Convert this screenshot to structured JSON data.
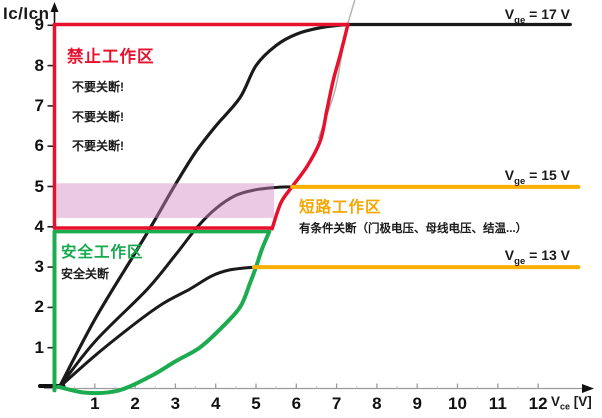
{
  "axis": {
    "y_title": "Ic/Icn",
    "x_title": {
      "v": "V",
      "sub": "ce",
      "rest": " [V]"
    }
  },
  "curve_labels": [
    {
      "v": "V",
      "sub": "ge",
      "rest": " = 17 V"
    },
    {
      "v": "V",
      "sub": "ge",
      "rest": " = 15 V"
    },
    {
      "v": "V",
      "sub": "ge",
      "rest": " = 13 V"
    }
  ],
  "regions": {
    "forbidden": {
      "title": "禁止工作区",
      "notes": [
        "不要关断!",
        "不要关断!",
        "不要关断!"
      ],
      "color": "#e8112d"
    },
    "safe": {
      "title": "安全工作区",
      "note": "安全关断",
      "color": "#15a94e"
    },
    "short_circuit": {
      "title": "短路工作区",
      "note": "有条件关断（门极电压、母线电压、结温...）",
      "color": "#f5a600"
    }
  },
  "chart_data": {
    "type": "line",
    "title": "",
    "xlabel": "Vce [V]",
    "ylabel": "Ic/Icn",
    "xlim": [
      0,
      13.2
    ],
    "ylim": [
      0,
      9.6
    ],
    "x_ticks": [
      1,
      2,
      3,
      4,
      5,
      6,
      7,
      8,
      9,
      10,
      11,
      12
    ],
    "y_ticks": [
      1,
      2,
      3,
      4,
      5,
      6,
      7,
      8,
      9
    ],
    "grid": false,
    "colors": {
      "curve_black": "#1a1a1a",
      "forbidden_red": "#e8112d",
      "safe_green": "#1cac4f",
      "short_orange": "#fbaf00",
      "axis_gray": "#9b9b9b",
      "hint_gray": "#b3b3b3"
    },
    "highlight_band": {
      "x": [
        0.05,
        5.45
      ],
      "y": [
        4.22,
        5.08
      ],
      "color": "rgba(211,136,195,0.45)"
    },
    "series": [
      {
        "name": "origin-mark",
        "color": "#111111",
        "width": 4,
        "layer": "under",
        "points": [
          [
            -0.36,
            0.05
          ],
          [
            0.22,
            0.05
          ]
        ]
      },
      {
        "name": "vge17-rise",
        "color": "#1a1a1a",
        "width": 3.2,
        "layer": "under",
        "points": [
          [
            0.12,
            0.02
          ],
          [
            1.0,
            1.7
          ],
          [
            2.0,
            3.35
          ],
          [
            2.45,
            4.1
          ],
          [
            3.0,
            5.05
          ],
          [
            3.5,
            5.85
          ],
          [
            4.0,
            6.5
          ],
          [
            4.6,
            7.2
          ],
          [
            5.0,
            8.0
          ],
          [
            5.5,
            8.5
          ],
          [
            6.0,
            8.78
          ],
          [
            6.6,
            8.94
          ],
          [
            7.25,
            9.02
          ]
        ]
      },
      {
        "name": "vge17-saturation",
        "color": "#1a1a1a",
        "width": 3.2,
        "layer": "under",
        "points": [
          [
            7.25,
            9.02
          ],
          [
            12.8,
            9.02
          ]
        ]
      },
      {
        "name": "vge15-rise",
        "color": "#1a1a1a",
        "width": 3,
        "layer": "under",
        "points": [
          [
            0.12,
            0.02
          ],
          [
            1.0,
            1.15
          ],
          [
            2.3,
            2.45
          ],
          [
            3.0,
            3.3
          ],
          [
            3.55,
            4.0
          ],
          [
            4.0,
            4.45
          ],
          [
            4.5,
            4.78
          ],
          [
            5.0,
            4.92
          ],
          [
            5.55,
            4.98
          ],
          [
            5.9,
            4.99
          ]
        ]
      },
      {
        "name": "vge13-rise",
        "color": "#1a1a1a",
        "width": 3,
        "layer": "under",
        "points": [
          [
            0.12,
            0.02
          ],
          [
            1.0,
            0.8
          ],
          [
            2.0,
            1.6
          ],
          [
            2.7,
            2.1
          ],
          [
            3.35,
            2.45
          ],
          [
            3.9,
            2.78
          ],
          [
            4.35,
            2.93
          ],
          [
            4.95,
            3.0
          ]
        ]
      },
      {
        "name": "hint-curve-gray-1",
        "color": "#b3b3b3",
        "width": 1.5,
        "layer": "under",
        "points": [
          [
            6.55,
            6.2
          ],
          [
            6.95,
            7.35
          ],
          [
            7.15,
            8.4
          ],
          [
            7.26,
            9.0
          ]
        ]
      },
      {
        "name": "hint-curve-gray-2",
        "color": "#b3b3b3",
        "width": 1.5,
        "layer": "under",
        "points": [
          [
            7.28,
            9.05
          ],
          [
            7.45,
            9.62
          ]
        ]
      },
      {
        "name": "safe-boundary-vertical",
        "color": "#1cac4f",
        "width": 4,
        "layer": "over",
        "points": [
          [
            0,
            -0.06
          ],
          [
            0,
            3.88
          ]
        ]
      },
      {
        "name": "safe-boundary-horizontal",
        "color": "#1cac4f",
        "width": 3.5,
        "layer": "over",
        "points": [
          [
            0,
            3.88
          ],
          [
            5.33,
            3.88
          ]
        ]
      },
      {
        "name": "safe-boundary-curve",
        "color": "#1cac4f",
        "width": 4,
        "layer": "over",
        "points": [
          [
            0.1,
            0.03
          ],
          [
            0.8,
            -0.12
          ],
          [
            1.6,
            -0.06
          ],
          [
            2.4,
            0.3
          ],
          [
            3.0,
            0.66
          ],
          [
            3.6,
            1.0
          ],
          [
            4.1,
            1.45
          ],
          [
            4.6,
            2.0
          ],
          [
            4.85,
            2.6
          ],
          [
            5.0,
            3.0
          ],
          [
            5.15,
            3.45
          ],
          [
            5.33,
            3.88
          ]
        ]
      },
      {
        "name": "forbidden-boundary-left",
        "color": "#e8112d",
        "width": 3.5,
        "layer": "over",
        "points": [
          [
            0,
            3.97
          ],
          [
            0,
            9.02
          ]
        ]
      },
      {
        "name": "forbidden-boundary-top",
        "color": "#e8112d",
        "width": 3.5,
        "layer": "over",
        "points": [
          [
            0,
            9.02
          ],
          [
            7.28,
            9.02
          ]
        ]
      },
      {
        "name": "forbidden-boundary-bottom",
        "color": "#e8112d",
        "width": 3.5,
        "layer": "over",
        "points": [
          [
            0,
            3.97
          ],
          [
            5.4,
            3.97
          ]
        ]
      },
      {
        "name": "desaturation-boundary-curve",
        "color": "#e8112d",
        "width": 3.5,
        "layer": "over",
        "points": [
          [
            5.4,
            3.95
          ],
          [
            5.62,
            4.6
          ],
          [
            5.9,
            5.0
          ],
          [
            6.28,
            5.52
          ],
          [
            6.6,
            6.15
          ],
          [
            6.76,
            6.9
          ],
          [
            6.92,
            7.65
          ],
          [
            7.1,
            8.3
          ],
          [
            7.28,
            9.02
          ]
        ]
      },
      {
        "name": "vge15-saturation",
        "color": "#fbaf00",
        "width": 4,
        "layer": "over",
        "points": [
          [
            5.9,
            4.99
          ],
          [
            13.0,
            4.99
          ]
        ]
      },
      {
        "name": "vge13-saturation",
        "color": "#fbaf00",
        "width": 4,
        "layer": "over",
        "points": [
          [
            4.95,
            3.0
          ],
          [
            13.0,
            3.0
          ]
        ]
      }
    ]
  }
}
